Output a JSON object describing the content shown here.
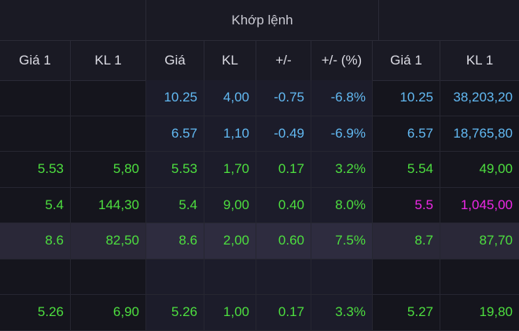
{
  "header": {
    "group_title": "Khớp lệnh",
    "columns": [
      "Giá 1",
      "KL 1",
      "Giá",
      "KL",
      "+/-",
      "+/- (%)",
      "Giá 1",
      "KL 1"
    ]
  },
  "colors": {
    "up": "#4dde3f",
    "down": "#62b9f2",
    "ceiling": "#ee28e6"
  },
  "rows": [
    {
      "cells": [
        "",
        "",
        "10.25",
        "4,00",
        "-0.75",
        "-6.8%",
        "10.25",
        "38,203,20"
      ],
      "colors": [
        "",
        "",
        "blue",
        "blue",
        "blue",
        "blue",
        "blue",
        "blue"
      ],
      "highlight": false
    },
    {
      "cells": [
        "",
        "",
        "6.57",
        "1,10",
        "-0.49",
        "-6.9%",
        "6.57",
        "18,765,80"
      ],
      "colors": [
        "",
        "",
        "blue",
        "blue",
        "blue",
        "blue",
        "blue",
        "blue"
      ],
      "highlight": false
    },
    {
      "cells": [
        "5.53",
        "5,80",
        "5.53",
        "1,70",
        "0.17",
        "3.2%",
        "5.54",
        "49,00"
      ],
      "colors": [
        "green",
        "green",
        "green",
        "green",
        "green",
        "green",
        "green",
        "green"
      ],
      "highlight": false
    },
    {
      "cells": [
        "5.4",
        "144,30",
        "5.4",
        "9,00",
        "0.40",
        "8.0%",
        "5.5",
        "1,045,00"
      ],
      "colors": [
        "green",
        "green",
        "green",
        "green",
        "green",
        "green",
        "magenta",
        "magenta"
      ],
      "highlight": false
    },
    {
      "cells": [
        "8.6",
        "82,50",
        "8.6",
        "2,00",
        "0.60",
        "7.5%",
        "8.7",
        "87,70"
      ],
      "colors": [
        "green",
        "green",
        "green",
        "green",
        "green",
        "green",
        "green",
        "green"
      ],
      "highlight": true
    },
    {
      "cells": [
        "",
        "",
        "",
        "",
        "",
        "",
        "",
        ""
      ],
      "colors": [
        "",
        "",
        "",
        "",
        "",
        "",
        "",
        ""
      ],
      "highlight": false
    },
    {
      "cells": [
        "5.26",
        "6,90",
        "5.26",
        "1,00",
        "0.17",
        "3.3%",
        "5.27",
        "19,80"
      ],
      "colors": [
        "green",
        "green",
        "green",
        "green",
        "green",
        "green",
        "green",
        "green"
      ],
      "highlight": false
    }
  ]
}
